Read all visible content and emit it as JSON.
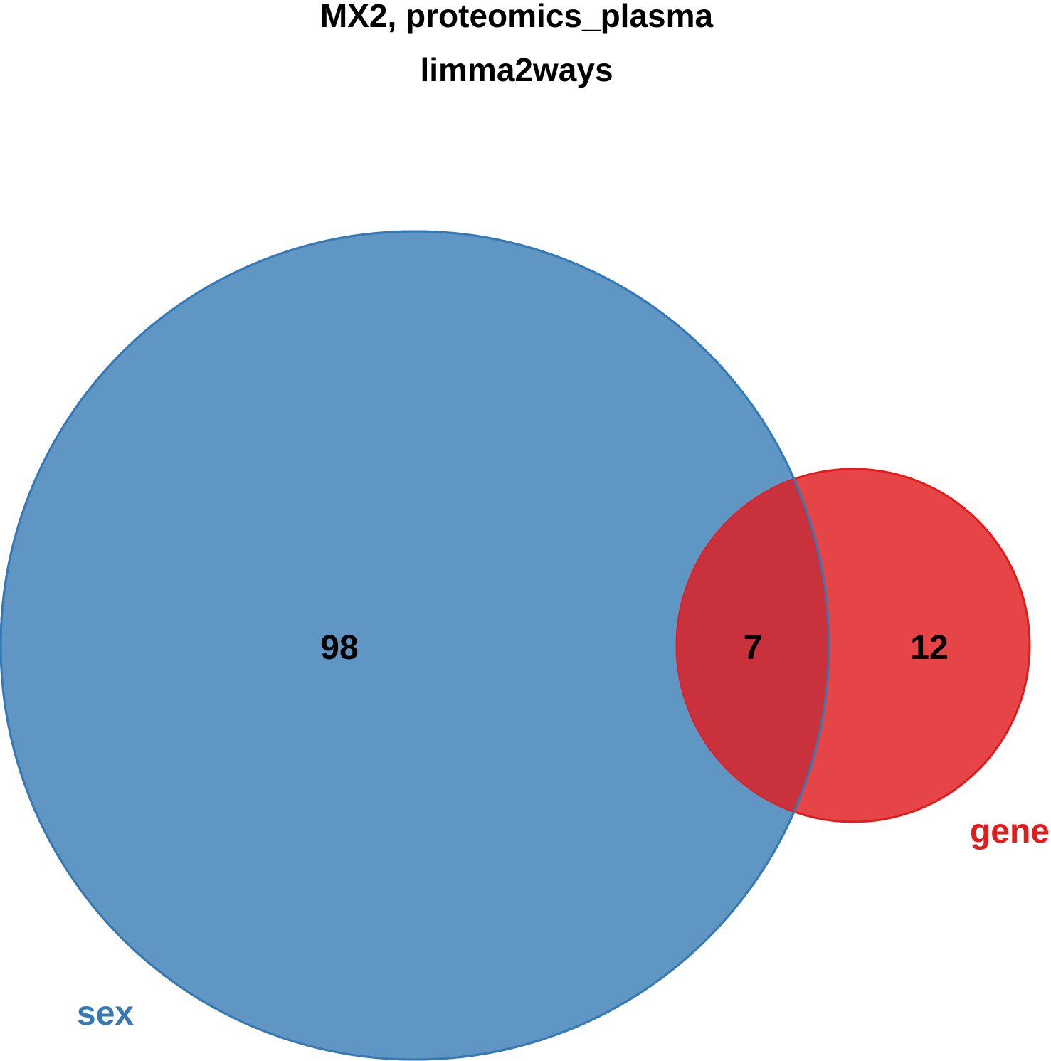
{
  "title": {
    "line1": "MX2, proteomics_plasma",
    "line2": "limma2ways"
  },
  "sets": [
    {
      "name": "sex",
      "label": "sex",
      "color": "#3679B4",
      "fill": "#6096C4"
    },
    {
      "name": "gene",
      "label": "gene",
      "color": "#E41A1C",
      "fill": "#E64547"
    }
  ],
  "regions": {
    "sex_only": "98",
    "intersection": "7",
    "gene_only": "12"
  },
  "intersection_fill": "#C9313D"
}
